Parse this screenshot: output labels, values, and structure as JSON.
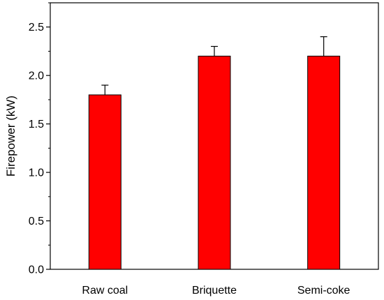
{
  "chart_data": {
    "type": "bar",
    "title": "",
    "xlabel": "",
    "ylabel": "Firepower (kW)",
    "categories": [
      "Raw coal",
      "Briquette",
      "Semi-coke"
    ],
    "values": [
      1.8,
      2.2,
      2.2
    ],
    "errors": [
      0.1,
      0.1,
      0.2
    ],
    "ylim": [
      0,
      2.75
    ],
    "yticks": [
      0.0,
      0.5,
      1.0,
      1.5,
      2.0,
      2.5
    ],
    "ytick_labels": [
      "0.0",
      "0.5",
      "1.0",
      "1.5",
      "2.0",
      "2.5"
    ],
    "grid": false,
    "legend": "none",
    "bar_color": "#ff0000",
    "edge_color": "#000000"
  }
}
